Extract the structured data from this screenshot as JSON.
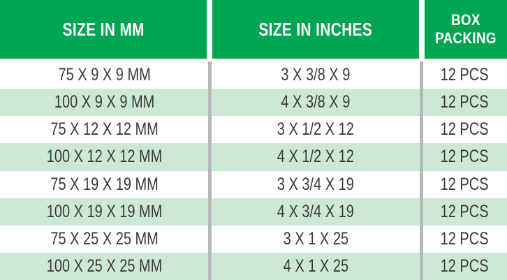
{
  "chart_data": {
    "type": "table",
    "title": "",
    "columns": [
      "SIZE IN MM",
      "SIZE IN INCHES",
      "BOX PACKING"
    ],
    "rows": [
      [
        "75 X 9 X 9 MM",
        "3 X 3/8 X 9",
        "12 PCS"
      ],
      [
        "100 X 9 X 9 MM",
        "4 X 3/8 X 9",
        "12 PCS"
      ],
      [
        "75 X 12 X 12 MM",
        "3 X 1/2 X 12",
        "12 PCS"
      ],
      [
        "100 X 12 X 12 MM",
        "4 X 1/2 X 12",
        "12 PCS"
      ],
      [
        "75 X 19 X 19 MM",
        "3 X 3/4 X 19",
        "12 PCS"
      ],
      [
        "100 X 19 X 19 MM",
        "4 X 3/4 X 19",
        "12 PCS"
      ],
      [
        "75 X 25 X 25 MM",
        "3 X 1 X 25",
        "12 PCS"
      ],
      [
        "100 X 25 X 25 MM",
        "4 X 1 X 25",
        "12 PCS"
      ]
    ],
    "layout_hints": {
      "row_striping": "white and light green alternating",
      "grid": "vertical gray dividers between columns only"
    }
  },
  "colors": {
    "header_green": "#00A551",
    "row_stripe_green": "#CEE8D6",
    "divider_gray": "#B5B7B9",
    "body_text": "#3A3A3A",
    "header_text": "#FFFFFF"
  }
}
